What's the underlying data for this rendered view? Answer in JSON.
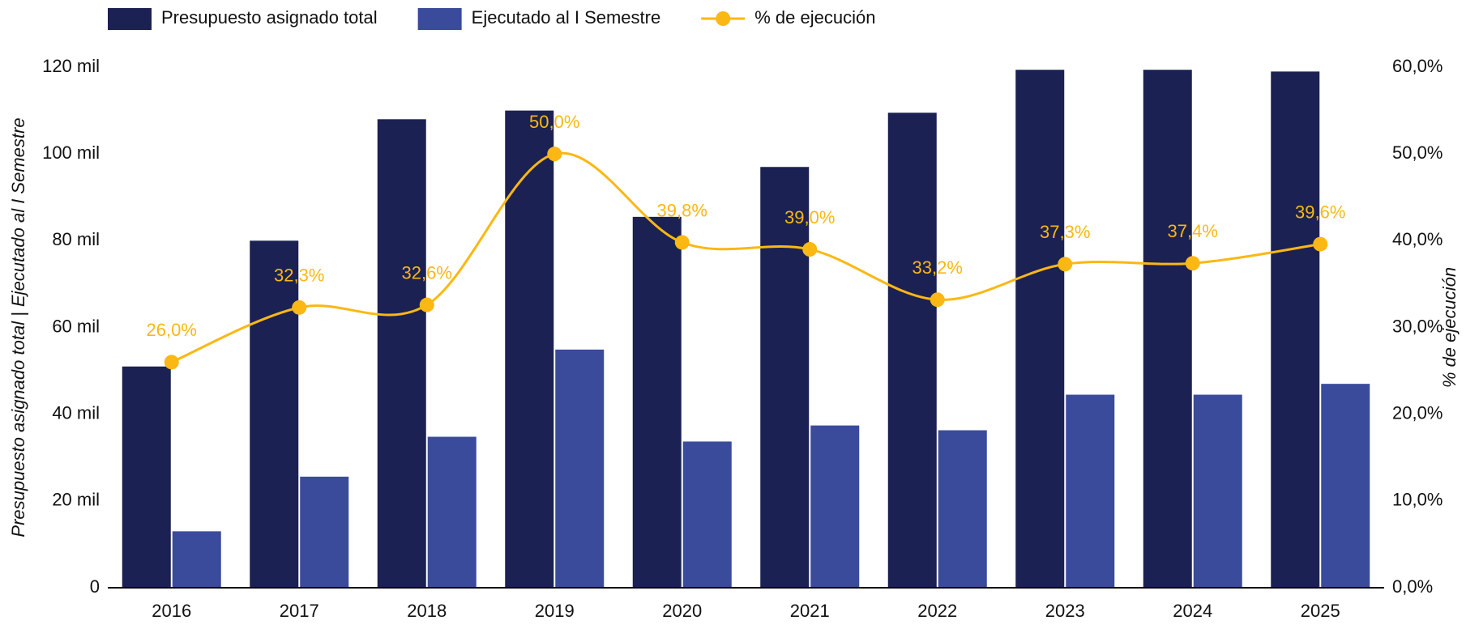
{
  "chart_data": {
    "type": "bar-line",
    "categories": [
      "2016",
      "2017",
      "2018",
      "2019",
      "2020",
      "2021",
      "2022",
      "2023",
      "2024",
      "2025"
    ],
    "series": [
      {
        "name": "Presupuesto asignado total",
        "color": "#1b2152",
        "values": [
          51000,
          80000,
          108000,
          110000,
          85500,
          97000,
          109500,
          119400,
          119400,
          119000
        ]
      },
      {
        "name": "Ejecutado al I Semestre",
        "color": "#3a4b9c",
        "values": [
          13000,
          25600,
          34800,
          54900,
          33700,
          37400,
          36300,
          44500,
          44500,
          47000
        ]
      },
      {
        "name": "% de ejecución",
        "color": "#fbb713",
        "axis": "y2",
        "values": [
          26.0,
          32.3,
          32.6,
          50.0,
          39.8,
          39.0,
          33.2,
          37.3,
          37.4,
          39.6
        ],
        "value_labels": [
          "26,0%",
          "32,3%",
          "32,6%",
          "50,0%",
          "39,8%",
          "39,0%",
          "33,2%",
          "37,3%",
          "37,4%",
          "39,6%"
        ]
      }
    ],
    "ylabel": "Presupuesto asignado total | Ejecutado al I Semestre",
    "y2label": "% de ejecución",
    "ylim": [
      0,
      120000
    ],
    "yticks": [
      0,
      {
        "value": 20000,
        "label": "20 mil"
      },
      {
        "value": 40000,
        "label": "40 mil"
      },
      {
        "value": 60000,
        "label": "60 mil"
      },
      {
        "value": 80000,
        "label": "80 mil"
      },
      {
        "value": 100000,
        "label": "100 mil"
      },
      {
        "value": 120000,
        "label": "120 mil"
      }
    ],
    "y2lim": [
      0,
      60
    ],
    "y2ticks": [
      {
        "value": 0,
        "label": "0,0%"
      },
      {
        "value": 10,
        "label": "10,0%"
      },
      {
        "value": 20,
        "label": "20,0%"
      },
      {
        "value": 30,
        "label": "30,0%"
      },
      {
        "value": 40,
        "label": "40,0%"
      },
      {
        "value": 50,
        "label": "50,0%"
      },
      {
        "value": 60,
        "label": "60,0%"
      }
    ],
    "legend": "top"
  }
}
